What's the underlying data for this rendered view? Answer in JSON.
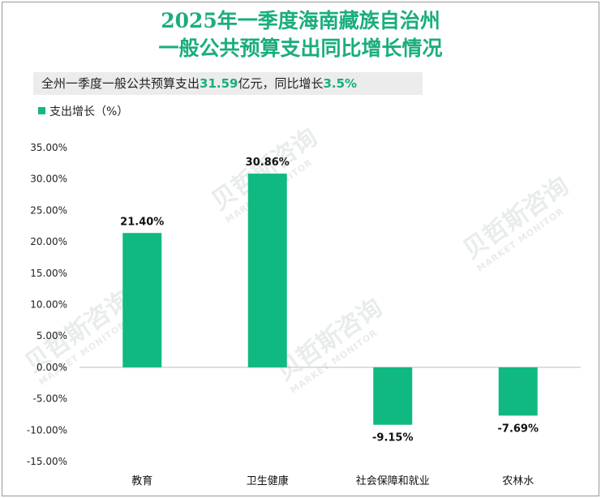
{
  "chart_data": {
    "type": "bar",
    "title_lines": [
      "2025年一季度海南藏族自治州",
      "一般公共预算支出同比增长情况"
    ],
    "subtitle": {
      "prefix": "全州一季度一般公共预算支出",
      "value1": "31.59",
      "middle": "亿元，同比增长",
      "value2": "3.5%"
    },
    "legend": "支出增长（%）",
    "categories": [
      "教育",
      "卫生健康",
      "社会保障和就业",
      "农林水"
    ],
    "values": [
      21.4,
      30.86,
      -9.15,
      -7.69
    ],
    "data_labels": [
      "21.40%",
      "30.86%",
      "-9.15%",
      "-7.69%"
    ],
    "ylim": [
      -15,
      35
    ],
    "yticks": [
      "35.00%",
      "30.00%",
      "25.00%",
      "20.00%",
      "15.00%",
      "10.00%",
      "5.00%",
      "0.00%",
      "-5.00%",
      "-10.00%",
      "-15.00%"
    ],
    "bar_color": "#10b981",
    "grid": false
  },
  "watermark": {
    "cn": "贝哲斯咨询",
    "en": "MARKET MONITOR"
  }
}
